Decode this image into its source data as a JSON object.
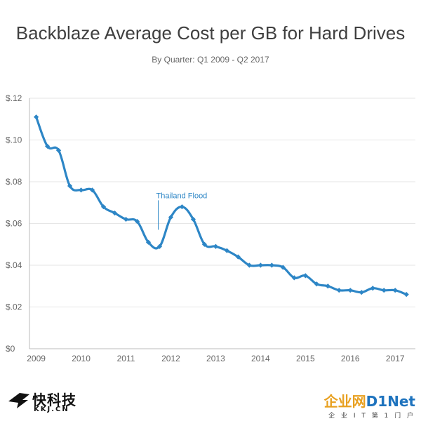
{
  "chart_data": {
    "type": "line",
    "title": "Backblaze Average Cost per GB for Hard Drives",
    "subtitle": "By Quarter: Q1 2009 - Q2 2017",
    "xlabel": "",
    "ylabel": "",
    "ylim": [
      0,
      0.12
    ],
    "yticks": [
      0,
      0.02,
      0.04,
      0.06,
      0.08,
      0.1,
      0.12
    ],
    "ytick_labels": [
      "$0",
      "$.02",
      "$.04",
      "$.06",
      "$.08",
      "$.10",
      "$.12"
    ],
    "xlim": [
      2008.85,
      2017.45
    ],
    "xticks": [
      2009,
      2010,
      2011,
      2012,
      2013,
      2014,
      2015,
      2016,
      2017
    ],
    "xtick_labels": [
      "2009",
      "2010",
      "2011",
      "2012",
      "2013",
      "2014",
      "2015",
      "2016",
      "2017"
    ],
    "grid": true,
    "series": [
      {
        "name": "Average Cost per GB",
        "color": "#2d86c6",
        "points": [
          {
            "x": 2009.0,
            "y": 0.111
          },
          {
            "x": 2009.25,
            "y": 0.097
          },
          {
            "x": 2009.5,
            "y": 0.095
          },
          {
            "x": 2009.75,
            "y": 0.078
          },
          {
            "x": 2010.0,
            "y": 0.076
          },
          {
            "x": 2010.25,
            "y": 0.076
          },
          {
            "x": 2010.5,
            "y": 0.068
          },
          {
            "x": 2010.75,
            "y": 0.065
          },
          {
            "x": 2011.0,
            "y": 0.062
          },
          {
            "x": 2011.25,
            "y": 0.061
          },
          {
            "x": 2011.5,
            "y": 0.051
          },
          {
            "x": 2011.75,
            "y": 0.049
          },
          {
            "x": 2012.0,
            "y": 0.063
          },
          {
            "x": 2012.25,
            "y": 0.068
          },
          {
            "x": 2012.5,
            "y": 0.062
          },
          {
            "x": 2012.75,
            "y": 0.05
          },
          {
            "x": 2013.0,
            "y": 0.049
          },
          {
            "x": 2013.25,
            "y": 0.047
          },
          {
            "x": 2013.5,
            "y": 0.044
          },
          {
            "x": 2013.75,
            "y": 0.04
          },
          {
            "x": 2014.0,
            "y": 0.04
          },
          {
            "x": 2014.25,
            "y": 0.04
          },
          {
            "x": 2014.5,
            "y": 0.039
          },
          {
            "x": 2014.75,
            "y": 0.034
          },
          {
            "x": 2015.0,
            "y": 0.035
          },
          {
            "x": 2015.25,
            "y": 0.031
          },
          {
            "x": 2015.5,
            "y": 0.03
          },
          {
            "x": 2015.75,
            "y": 0.028
          },
          {
            "x": 2016.0,
            "y": 0.028
          },
          {
            "x": 2016.25,
            "y": 0.027
          },
          {
            "x": 2016.5,
            "y": 0.029
          },
          {
            "x": 2016.75,
            "y": 0.028
          },
          {
            "x": 2017.0,
            "y": 0.028
          },
          {
            "x": 2017.25,
            "y": 0.026
          }
        ]
      }
    ],
    "annotations": [
      {
        "text": "Thailand Flood",
        "x": 2011.72,
        "y": 0.057,
        "color": "#2d86c6"
      }
    ]
  },
  "watermarks": {
    "left_cn": "快科技",
    "left_en": "KKJ.CN",
    "right_brand_a": "企业网",
    "right_brand_b": "D1Net",
    "right_sub": "企 业 I T 第 1 门 户"
  },
  "colors": {
    "line": "#2d86c6",
    "grid": "#e6e6e6",
    "axis": "#bbbbbb",
    "text": "#3f3f3f"
  }
}
